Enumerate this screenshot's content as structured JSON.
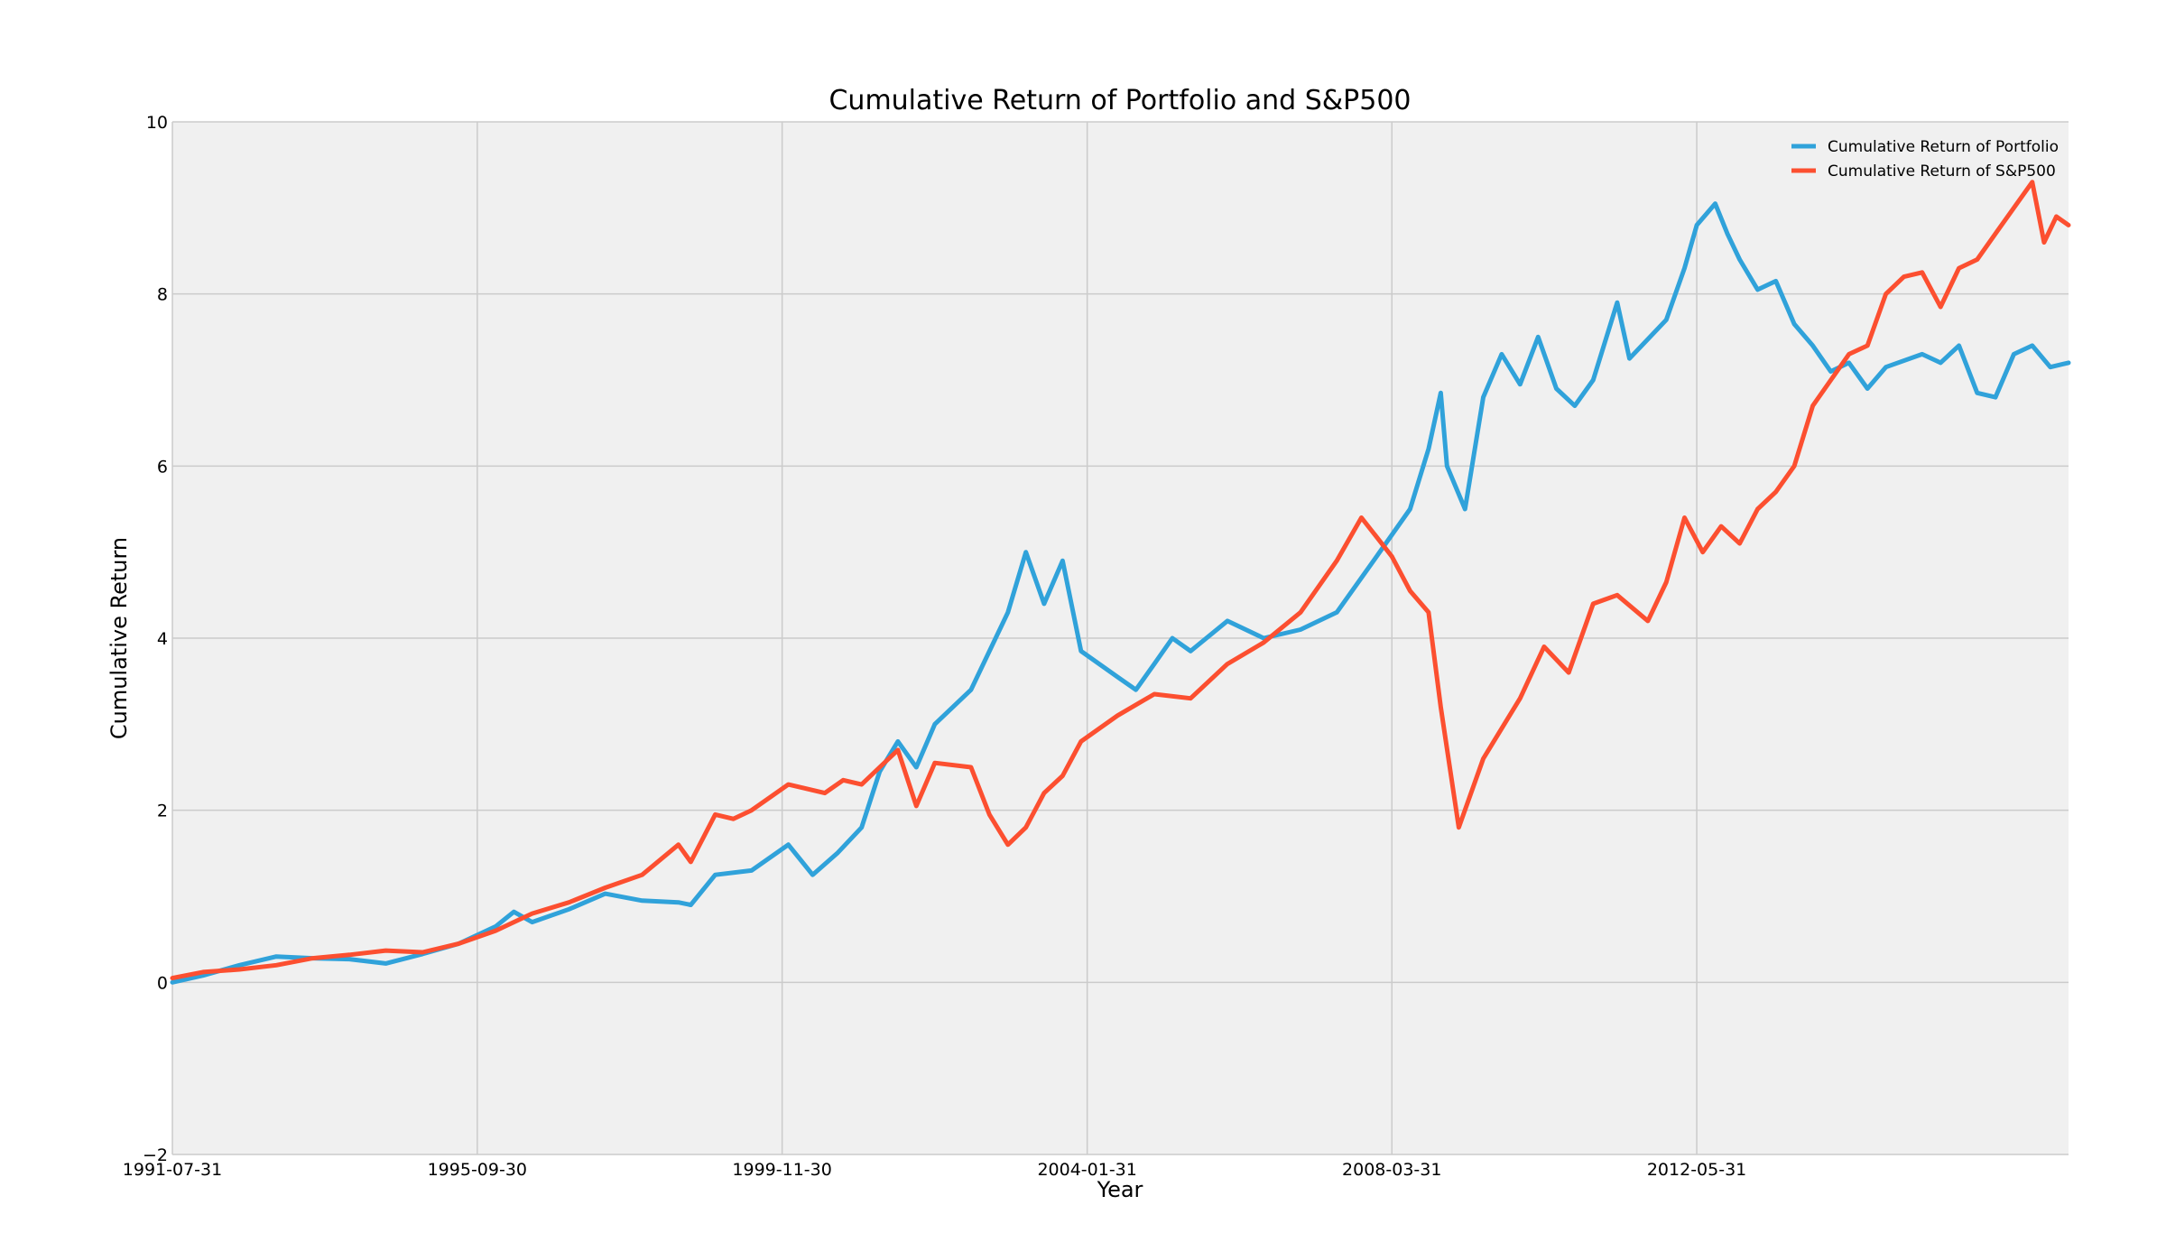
{
  "chart_data": {
    "type": "line",
    "title": "Cumulative Return of Portfolio and S&P500",
    "xlabel": "Year",
    "ylabel": "Cumulative Return",
    "xlim": [
      "1991-07-31",
      "2017-06-30"
    ],
    "ylim": [
      -2,
      10
    ],
    "x_ticks": [
      "1991-07-31",
      "1995-09-30",
      "1999-11-30",
      "2004-01-31",
      "2008-03-31",
      "2012-05-31"
    ],
    "y_ticks": [
      -2,
      0,
      2,
      4,
      6,
      8,
      10
    ],
    "grid": true,
    "legend_position": "top-right",
    "colors": {
      "portfolio": "#30a2da",
      "sp500": "#fc4f30",
      "plot_bg": "#f0f0f0",
      "grid": "#cbcbcb"
    },
    "series": [
      {
        "name": "Cumulative Return of Portfolio",
        "color": "#30a2da",
        "points": [
          [
            "1991-07-31",
            0.0
          ],
          [
            "1991-12-31",
            0.08
          ],
          [
            "1992-06-30",
            0.2
          ],
          [
            "1992-12-31",
            0.3
          ],
          [
            "1993-06-30",
            0.28
          ],
          [
            "1993-12-31",
            0.27
          ],
          [
            "1994-06-30",
            0.22
          ],
          [
            "1994-12-31",
            0.33
          ],
          [
            "1995-06-30",
            0.45
          ],
          [
            "1995-12-31",
            0.65
          ],
          [
            "1996-03-31",
            0.82
          ],
          [
            "1996-06-30",
            0.7
          ],
          [
            "1996-12-31",
            0.85
          ],
          [
            "1997-06-30",
            1.03
          ],
          [
            "1997-12-31",
            0.95
          ],
          [
            "1998-06-30",
            0.93
          ],
          [
            "1998-08-31",
            0.9
          ],
          [
            "1998-12-31",
            1.25
          ],
          [
            "1999-06-30",
            1.3
          ],
          [
            "1999-12-31",
            1.6
          ],
          [
            "2000-04-30",
            1.25
          ],
          [
            "2000-08-31",
            1.5
          ],
          [
            "2000-12-31",
            1.8
          ],
          [
            "2001-03-31",
            2.45
          ],
          [
            "2001-06-30",
            2.8
          ],
          [
            "2001-09-30",
            2.5
          ],
          [
            "2001-12-31",
            3.0
          ],
          [
            "2002-06-30",
            3.4
          ],
          [
            "2002-12-31",
            4.3
          ],
          [
            "2003-03-31",
            5.0
          ],
          [
            "2003-06-30",
            4.4
          ],
          [
            "2003-09-30",
            4.9
          ],
          [
            "2003-12-31",
            3.85
          ],
          [
            "2004-06-30",
            3.55
          ],
          [
            "2004-09-30",
            3.4
          ],
          [
            "2004-12-31",
            3.7
          ],
          [
            "2005-03-31",
            4.0
          ],
          [
            "2005-06-30",
            3.85
          ],
          [
            "2005-12-31",
            4.2
          ],
          [
            "2006-06-30",
            4.0
          ],
          [
            "2006-12-31",
            4.1
          ],
          [
            "2007-06-30",
            4.3
          ],
          [
            "2007-12-31",
            4.9
          ],
          [
            "2008-06-30",
            5.5
          ],
          [
            "2008-09-30",
            6.2
          ],
          [
            "2008-11-30",
            6.85
          ],
          [
            "2008-12-31",
            6.0
          ],
          [
            "2009-03-31",
            5.5
          ],
          [
            "2009-06-30",
            6.8
          ],
          [
            "2009-09-30",
            7.3
          ],
          [
            "2009-12-31",
            6.95
          ],
          [
            "2010-03-31",
            7.5
          ],
          [
            "2010-06-30",
            6.9
          ],
          [
            "2010-09-30",
            6.7
          ],
          [
            "2010-12-31",
            7.0
          ],
          [
            "2011-04-30",
            7.9
          ],
          [
            "2011-06-30",
            7.25
          ],
          [
            "2011-12-31",
            7.7
          ],
          [
            "2012-03-31",
            8.3
          ],
          [
            "2012-05-31",
            8.8
          ],
          [
            "2012-08-31",
            9.05
          ],
          [
            "2012-10-31",
            8.7
          ],
          [
            "2012-12-31",
            8.4
          ],
          [
            "2013-03-31",
            8.05
          ],
          [
            "2013-06-30",
            8.15
          ],
          [
            "2013-09-30",
            7.65
          ],
          [
            "2013-12-31",
            7.4
          ],
          [
            "2014-03-31",
            7.1
          ],
          [
            "2014-06-30",
            7.2
          ],
          [
            "2014-09-30",
            6.9
          ],
          [
            "2014-12-31",
            7.15
          ],
          [
            "2015-06-30",
            7.3
          ],
          [
            "2015-09-30",
            7.2
          ],
          [
            "2015-12-31",
            7.4
          ],
          [
            "2016-03-31",
            6.85
          ],
          [
            "2016-06-30",
            6.8
          ],
          [
            "2016-09-30",
            7.3
          ],
          [
            "2016-12-31",
            7.4
          ],
          [
            "2017-03-31",
            7.15
          ],
          [
            "2017-06-30",
            7.2
          ]
        ]
      },
      {
        "name": "Cumulative Return of S&P500",
        "color": "#fc4f30",
        "points": [
          [
            "1991-07-31",
            0.05
          ],
          [
            "1991-12-31",
            0.12
          ],
          [
            "1992-06-30",
            0.15
          ],
          [
            "1992-12-31",
            0.2
          ],
          [
            "1993-06-30",
            0.28
          ],
          [
            "1993-12-31",
            0.32
          ],
          [
            "1994-06-30",
            0.37
          ],
          [
            "1994-12-31",
            0.35
          ],
          [
            "1995-06-30",
            0.45
          ],
          [
            "1995-12-31",
            0.6
          ],
          [
            "1996-06-30",
            0.8
          ],
          [
            "1996-12-31",
            0.93
          ],
          [
            "1997-06-30",
            1.1
          ],
          [
            "1997-12-31",
            1.25
          ],
          [
            "1998-06-30",
            1.6
          ],
          [
            "1998-08-31",
            1.4
          ],
          [
            "1998-12-31",
            1.95
          ],
          [
            "1999-03-31",
            1.9
          ],
          [
            "1999-06-30",
            2.0
          ],
          [
            "1999-12-31",
            2.3
          ],
          [
            "2000-03-31",
            2.25
          ],
          [
            "2000-06-30",
            2.2
          ],
          [
            "2000-09-30",
            2.35
          ],
          [
            "2000-12-31",
            2.3
          ],
          [
            "2001-03-31",
            2.5
          ],
          [
            "2001-06-30",
            2.7
          ],
          [
            "2001-09-30",
            2.05
          ],
          [
            "2001-12-31",
            2.55
          ],
          [
            "2002-06-30",
            2.5
          ],
          [
            "2002-09-30",
            1.95
          ],
          [
            "2002-12-31",
            1.6
          ],
          [
            "2003-03-31",
            1.8
          ],
          [
            "2003-06-30",
            2.2
          ],
          [
            "2003-09-30",
            2.4
          ],
          [
            "2003-12-31",
            2.8
          ],
          [
            "2004-06-30",
            3.1
          ],
          [
            "2004-12-31",
            3.35
          ],
          [
            "2005-06-30",
            3.3
          ],
          [
            "2005-12-31",
            3.7
          ],
          [
            "2006-06-30",
            3.95
          ],
          [
            "2006-12-31",
            4.3
          ],
          [
            "2007-06-30",
            4.9
          ],
          [
            "2007-10-31",
            5.4
          ],
          [
            "2008-03-31",
            4.95
          ],
          [
            "2008-06-30",
            4.55
          ],
          [
            "2008-09-30",
            4.3
          ],
          [
            "2008-11-30",
            3.2
          ],
          [
            "2009-02-28",
            1.8
          ],
          [
            "2009-06-30",
            2.6
          ],
          [
            "2009-12-31",
            3.3
          ],
          [
            "2010-04-30",
            3.9
          ],
          [
            "2010-08-31",
            3.6
          ],
          [
            "2010-12-31",
            4.4
          ],
          [
            "2011-04-30",
            4.5
          ],
          [
            "2011-09-30",
            4.2
          ],
          [
            "2011-12-31",
            4.65
          ],
          [
            "2012-03-31",
            5.4
          ],
          [
            "2012-06-30",
            5.0
          ],
          [
            "2012-09-30",
            5.3
          ],
          [
            "2012-12-31",
            5.1
          ],
          [
            "2013-03-31",
            5.5
          ],
          [
            "2013-06-30",
            5.7
          ],
          [
            "2013-09-30",
            6.0
          ],
          [
            "2013-12-31",
            6.7
          ],
          [
            "2014-06-30",
            7.3
          ],
          [
            "2014-09-30",
            7.4
          ],
          [
            "2014-12-31",
            8.0
          ],
          [
            "2015-03-31",
            8.2
          ],
          [
            "2015-06-30",
            8.25
          ],
          [
            "2015-09-30",
            7.85
          ],
          [
            "2015-12-31",
            8.3
          ],
          [
            "2016-03-31",
            8.4
          ],
          [
            "2016-06-30",
            8.7
          ],
          [
            "2016-09-30",
            9.0
          ],
          [
            "2016-12-31",
            9.3
          ],
          [
            "2017-02-28",
            8.6
          ],
          [
            "2017-04-30",
            8.9
          ],
          [
            "2017-06-30",
            8.8
          ]
        ]
      }
    ]
  }
}
